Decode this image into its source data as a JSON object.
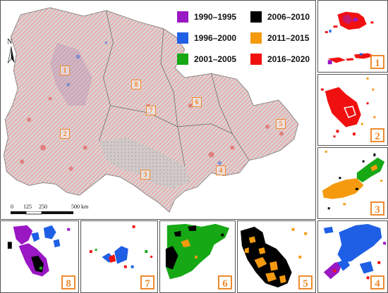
{
  "legend": {
    "items": [
      {
        "label": "1990–1995",
        "color": "#9a17c4"
      },
      {
        "label": "2006–2010",
        "color": "#000000"
      },
      {
        "label": "1996–2000",
        "color": "#1f5fe6"
      },
      {
        "label": "2011–2015",
        "color": "#f59a0e"
      },
      {
        "label": "2001–2005",
        "color": "#16a815"
      },
      {
        "label": "2016–2020",
        "color": "#f01010"
      }
    ]
  },
  "north_arrow": {
    "letter": "N"
  },
  "scale_bar": {
    "ticks": [
      "0",
      "125",
      "250"
    ],
    "end_label": "500 km"
  },
  "map_markers": [
    "1",
    "2",
    "3",
    "4",
    "5",
    "6",
    "7",
    "8"
  ],
  "insets": [
    {
      "number": "1",
      "colors": [
        "red",
        "purple",
        "blue"
      ]
    },
    {
      "number": "2",
      "colors": [
        "red",
        "orange"
      ]
    },
    {
      "number": "3",
      "colors": [
        "orange",
        "green",
        "black"
      ]
    },
    {
      "number": "4",
      "colors": [
        "blue",
        "purple",
        "red"
      ]
    },
    {
      "number": "5",
      "colors": [
        "black",
        "orange"
      ]
    },
    {
      "number": "6",
      "colors": [
        "green",
        "black",
        "orange"
      ]
    },
    {
      "number": "7",
      "colors": [
        "blue",
        "red",
        "green"
      ]
    },
    {
      "number": "8",
      "colors": [
        "purple",
        "blue",
        "black",
        "green"
      ]
    }
  ]
}
